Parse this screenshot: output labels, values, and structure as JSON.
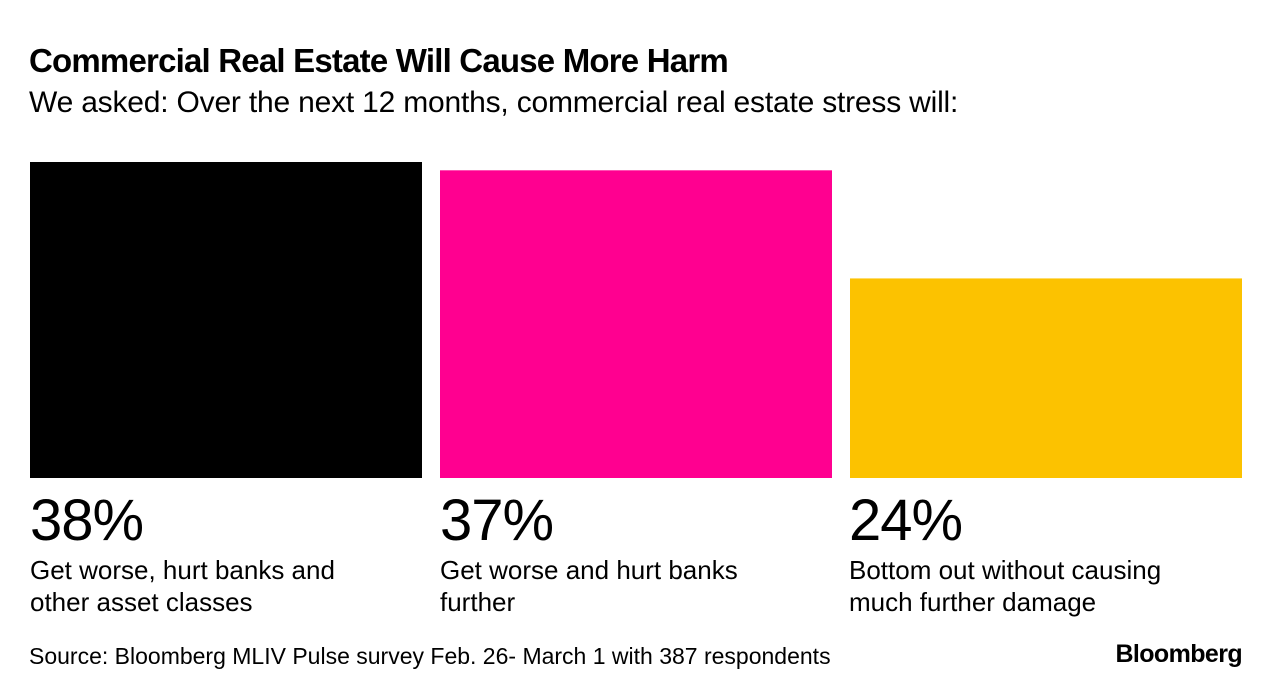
{
  "chart_data": {
    "type": "bar",
    "title": "Commercial Real Estate Will Cause More Harm",
    "subtitle": "We asked: Over the next 12 months, commercial real estate stress will:",
    "categories": [
      "Get worse, hurt banks and other asset classes",
      "Get worse and hurt banks further",
      "Bottom out without causing much further damage"
    ],
    "values": [
      38,
      37,
      24
    ],
    "value_labels": [
      "38%",
      "37%",
      "24%"
    ],
    "label_lines": [
      [
        "Get worse, hurt banks and",
        "other asset classes"
      ],
      [
        "Get worse and hurt banks",
        "further"
      ],
      [
        "Bottom out without causing",
        "much further damage"
      ]
    ],
    "colors": [
      "#000000",
      "#ff0090",
      "#fcc200"
    ],
    "ylim": [
      0,
      38
    ],
    "unit": "%",
    "xlabel": "",
    "ylabel": "",
    "grid": false
  },
  "footer": {
    "source": "Source: Bloomberg MLIV Pulse survey Feb. 26- March 1 with 387 respondents",
    "brand": "Bloomberg"
  }
}
